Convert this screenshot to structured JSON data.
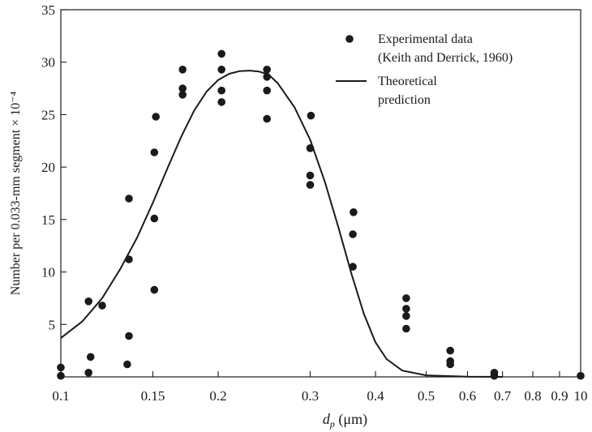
{
  "chart_data": {
    "type": "scatter",
    "x_scale": "log",
    "xlim": [
      0.1,
      10
    ],
    "ylim": [
      0,
      35
    ],
    "xlabel": "d_p (μm)",
    "xlabel_main": "d",
    "xlabel_sub": "p",
    "xlabel_unit": " (μm)",
    "ylabel": "Number per 0.033-mm segment × 10⁻⁴",
    "x_ticks": [
      {
        "value": 0.1,
        "label": "0.1"
      },
      {
        "value": 0.15,
        "label": "0.15"
      },
      {
        "value": 0.2,
        "label": "0.2"
      },
      {
        "value": 0.3,
        "label": "0.3"
      },
      {
        "value": 0.4,
        "label": "0.4"
      },
      {
        "value": 0.5,
        "label": "0.5"
      },
      {
        "value": 0.6,
        "label": "0.6"
      },
      {
        "value": 0.7,
        "label": "0.7"
      },
      {
        "value": 0.8,
        "label": "0.8"
      },
      {
        "value": 0.9,
        "label": "0.9"
      },
      {
        "value": 10,
        "label": "10"
      }
    ],
    "y_ticks": [
      {
        "value": 5,
        "label": "5"
      },
      {
        "value": 10,
        "label": "10"
      },
      {
        "value": 15,
        "label": "15"
      },
      {
        "value": 20,
        "label": "20"
      },
      {
        "value": 25,
        "label": "25"
      },
      {
        "value": 30,
        "label": "30"
      },
      {
        "value": 35,
        "label": "35"
      }
    ],
    "legend_position": "top-right",
    "series": [
      {
        "name": "Experimental data (Keith and Derrick, 1960)",
        "legend_lines": [
          "Experimental data",
          "(Keith and Derrick, 1960)"
        ],
        "kind": "points",
        "color": "#1a1a1a",
        "points": [
          {
            "x": 0.1,
            "y": 0.9
          },
          {
            "x": 0.1,
            "y": 0.1
          },
          {
            "x": 0.113,
            "y": 7.2
          },
          {
            "x": 0.114,
            "y": 1.9
          },
          {
            "x": 0.113,
            "y": 0.4
          },
          {
            "x": 0.12,
            "y": 6.8
          },
          {
            "x": 0.135,
            "y": 17.0
          },
          {
            "x": 0.135,
            "y": 11.2
          },
          {
            "x": 0.135,
            "y": 3.9
          },
          {
            "x": 0.134,
            "y": 1.2
          },
          {
            "x": 0.152,
            "y": 24.8
          },
          {
            "x": 0.151,
            "y": 21.4
          },
          {
            "x": 0.151,
            "y": 15.1
          },
          {
            "x": 0.151,
            "y": 8.3
          },
          {
            "x": 0.171,
            "y": 29.3
          },
          {
            "x": 0.171,
            "y": 27.5
          },
          {
            "x": 0.171,
            "y": 26.9
          },
          {
            "x": 0.203,
            "y": 30.8
          },
          {
            "x": 0.203,
            "y": 29.3
          },
          {
            "x": 0.203,
            "y": 27.3
          },
          {
            "x": 0.203,
            "y": 26.2
          },
          {
            "x": 0.248,
            "y": 29.3
          },
          {
            "x": 0.248,
            "y": 28.6
          },
          {
            "x": 0.248,
            "y": 27.3
          },
          {
            "x": 0.248,
            "y": 24.6
          },
          {
            "x": 0.301,
            "y": 24.9
          },
          {
            "x": 0.3,
            "y": 21.8
          },
          {
            "x": 0.3,
            "y": 19.2
          },
          {
            "x": 0.3,
            "y": 18.3
          },
          {
            "x": 0.363,
            "y": 15.7
          },
          {
            "x": 0.362,
            "y": 13.6
          },
          {
            "x": 0.362,
            "y": 10.5
          },
          {
            "x": 0.458,
            "y": 7.5
          },
          {
            "x": 0.458,
            "y": 6.5
          },
          {
            "x": 0.458,
            "y": 5.8
          },
          {
            "x": 0.458,
            "y": 4.6
          },
          {
            "x": 0.556,
            "y": 2.5
          },
          {
            "x": 0.556,
            "y": 1.5
          },
          {
            "x": 0.556,
            "y": 1.2
          },
          {
            "x": 0.675,
            "y": 0.4
          },
          {
            "x": 0.675,
            "y": 0.1
          },
          {
            "x": 10,
            "y": 0.1
          }
        ]
      },
      {
        "name": "Theoretical prediction",
        "legend_lines": [
          "Theoretical",
          "prediction"
        ],
        "kind": "line",
        "color": "#1a1a1a",
        "points": [
          {
            "x": 0.1,
            "y": 3.7
          },
          {
            "x": 0.11,
            "y": 5.3
          },
          {
            "x": 0.12,
            "y": 7.5
          },
          {
            "x": 0.13,
            "y": 10.3
          },
          {
            "x": 0.14,
            "y": 13.3
          },
          {
            "x": 0.15,
            "y": 16.6
          },
          {
            "x": 0.16,
            "y": 19.9
          },
          {
            "x": 0.17,
            "y": 22.9
          },
          {
            "x": 0.18,
            "y": 25.4
          },
          {
            "x": 0.19,
            "y": 27.2
          },
          {
            "x": 0.2,
            "y": 28.3
          },
          {
            "x": 0.21,
            "y": 28.9
          },
          {
            "x": 0.22,
            "y": 29.15
          },
          {
            "x": 0.23,
            "y": 29.2
          },
          {
            "x": 0.24,
            "y": 29.1
          },
          {
            "x": 0.25,
            "y": 28.8
          },
          {
            "x": 0.26,
            "y": 28.0
          },
          {
            "x": 0.28,
            "y": 25.7
          },
          {
            "x": 0.3,
            "y": 22.6
          },
          {
            "x": 0.32,
            "y": 18.6
          },
          {
            "x": 0.34,
            "y": 14.2
          },
          {
            "x": 0.36,
            "y": 9.8
          },
          {
            "x": 0.38,
            "y": 6.0
          },
          {
            "x": 0.4,
            "y": 3.3
          },
          {
            "x": 0.42,
            "y": 1.7
          },
          {
            "x": 0.45,
            "y": 0.6
          },
          {
            "x": 0.5,
            "y": 0.15
          },
          {
            "x": 0.6,
            "y": 0.02
          },
          {
            "x": 0.7,
            "y": 0.0
          }
        ]
      }
    ]
  }
}
